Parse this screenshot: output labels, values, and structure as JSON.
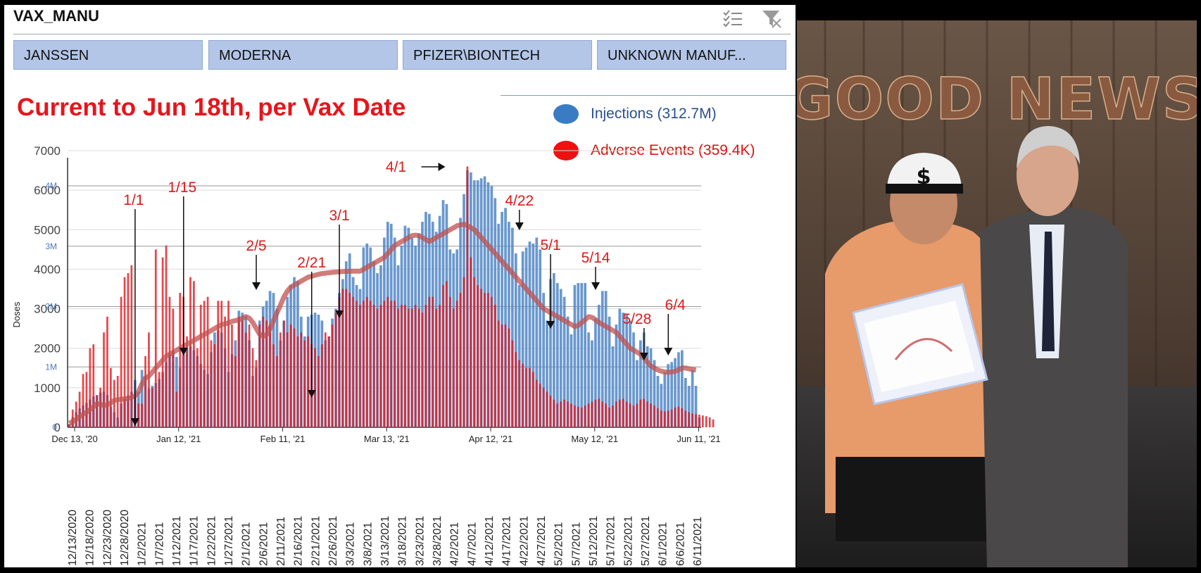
{
  "slicer": {
    "title": "VAX_MANU",
    "items": [
      "JANSSEN",
      "MODERNA",
      "PFIZER\\BIONTECH",
      "UNKNOWN MANUF..."
    ],
    "icons": [
      "multi-select-icon",
      "clear-filter-icon"
    ]
  },
  "chart_title": "Current to Jun 18th, per Vax Date",
  "legend": {
    "injections": "Injections (312.7M)",
    "adverse": "Adverse Events (359.4K)"
  },
  "colors": {
    "injections": "#4f86c6",
    "adverse": "#e0181e",
    "trend": "#c0504d",
    "title_red": "#e8141b",
    "annotation_red": "#dd1a1a"
  },
  "photo": {
    "sign_text": "GOOD NEWS"
  },
  "chart_data": {
    "type": "bar",
    "xlabel": "",
    "ylabel": "Doses",
    "ylim_left": [
      0,
      7000
    ],
    "ylim_right_label_max": "4M",
    "y_ticks_left": [
      "0",
      "1000",
      "2000",
      "3000",
      "4000",
      "5000",
      "6000",
      "7000"
    ],
    "y_ticks_right": [
      "0",
      "1M",
      "2M",
      "3M",
      "4M"
    ],
    "x_axis_top_labels": [
      "Dec 13, '20",
      "Jan 12, '21",
      "Feb 11, '21",
      "Mar 13, '21",
      "Apr 12, '21",
      "May 12, '21",
      "Jun 11, '21"
    ],
    "x_axis_bottom_labels": [
      "12/13/2020",
      "12/18/2020",
      "12/23/2020",
      "12/28/2020",
      "1/2/2021",
      "1/7/2021",
      "1/12/2021",
      "1/17/2021",
      "1/22/2021",
      "1/27/2021",
      "2/1/2021",
      "2/6/2021",
      "2/11/2021",
      "2/16/2021",
      "2/21/2021",
      "2/26/2021",
      "3/3/2021",
      "3/8/2021",
      "3/13/2021",
      "3/18/2021",
      "3/23/2021",
      "3/28/2021",
      "4/2/2021",
      "4/7/2021",
      "4/12/2021",
      "4/17/2021",
      "4/22/2021",
      "4/27/2021",
      "5/2/2021",
      "5/7/2021",
      "5/12/2021",
      "5/17/2021",
      "5/22/2021",
      "5/27/2021",
      "6/1/2021",
      "6/6/2021",
      "6/11/2021"
    ],
    "series": [
      {
        "name": "Injections (312.7M)",
        "unit": "doses",
        "x": "daily, 2020-12-13 to 2021-06-11",
        "values": [
          80,
          250,
          380,
          480,
          550,
          620,
          700,
          780,
          820,
          880,
          900,
          820,
          520,
          380,
          250,
          600,
          720,
          800,
          900,
          1200,
          900,
          1450,
          1300,
          980,
          1050,
          1120,
          1220,
          1400,
          1650,
          1850,
          1920,
          1780,
          1500,
          1850,
          2000,
          2050,
          1950,
          1800,
          1600,
          1450,
          1350,
          1900,
          2400,
          2450,
          2400,
          2000,
          1400,
          1850,
          2200,
          2950,
          2900,
          2820,
          2200,
          1300,
          1500,
          2700,
          3050,
          3200,
          3450,
          3400,
          3000,
          2200,
          2700,
          3300,
          3600,
          3800,
          3700,
          2800,
          2300,
          2800,
          2850,
          2900,
          2850,
          2700,
          2200,
          2300,
          2750,
          3000,
          3400,
          3750,
          4200,
          4400,
          3800,
          3600,
          3500,
          4550,
          4650,
          4550,
          4200,
          3900,
          4100,
          4800,
          5200,
          5150,
          4800,
          4100,
          4600,
          5100,
          5050,
          4800,
          4600,
          4900,
          5200,
          5450,
          5400,
          5200,
          4950,
          5350,
          5750,
          5650,
          4500,
          4400,
          4500,
          5300,
          5900,
          6500,
          6450,
          6250,
          6250,
          6300,
          6350,
          6200,
          6100,
          5800,
          5150,
          5450,
          5550,
          5200,
          5050,
          4400,
          3600,
          4450,
          4550,
          4700,
          4650,
          4800,
          4500,
          3400,
          2700,
          3750,
          3900,
          3650,
          3500,
          3300,
          2800,
          2350,
          3600,
          3650,
          3650,
          3650,
          2400,
          2200,
          2750,
          3100,
          3450,
          3450,
          2800,
          2050,
          2600,
          3000,
          2900,
          2850,
          2700,
          2400,
          1700,
          2200,
          2400,
          2050,
          2000,
          1700,
          1300,
          1100,
          1400,
          1600,
          1650,
          1750,
          1900,
          1950,
          1250,
          1050,
          1450,
          1050,
          250
        ]
      },
      {
        "name": "Adverse Events (359.4K)",
        "unit": "reports",
        "values": [
          80,
          450,
          650,
          900,
          1350,
          1400,
          2000,
          2100,
          800,
          1000,
          2400,
          2800,
          1500,
          1200,
          1300,
          3300,
          3800,
          3900,
          4100,
          800,
          600,
          600,
          1800,
          2400,
          1000,
          4500,
          1400,
          4300,
          4600,
          3300,
          3000,
          900,
          3400,
          3300,
          2300,
          3800,
          3700,
          2000,
          3100,
          3200,
          3300,
          2200,
          2100,
          3200,
          3200,
          2800,
          3200,
          2600,
          1800,
          2800,
          2700,
          2400,
          2600,
          2000,
          1700,
          2600,
          2800,
          2700,
          2600,
          2100,
          1800,
          2400,
          2700,
          2400,
          2600,
          2500,
          2300,
          2400,
          2200,
          2300,
          2100,
          2000,
          1800,
          2100,
          2400,
          2300,
          2600,
          2900,
          3300,
          3500,
          3500,
          3400,
          3300,
          3200,
          3100,
          3200,
          3300,
          3200,
          3100,
          3000,
          3100,
          3200,
          3300,
          3200,
          3200,
          3000,
          3100,
          3100,
          3000,
          3000,
          3100,
          3000,
          2900,
          3100,
          3300,
          3300,
          3000,
          3100,
          3600,
          3700,
          3300,
          3000,
          3200,
          3400,
          3800,
          6600,
          4300,
          3800,
          3600,
          3500,
          3400,
          3400,
          3300,
          3100,
          2700,
          2600,
          2600,
          2500,
          2200,
          1900,
          1700,
          1600,
          1500,
          1500,
          1400,
          1200,
          1100,
          1000,
          900,
          800,
          700,
          600,
          650,
          700,
          650,
          600,
          550,
          520,
          500,
          550,
          600,
          650,
          700,
          720,
          650,
          600,
          500,
          550,
          650,
          700,
          720,
          650,
          600,
          550,
          600,
          700,
          720,
          650,
          600,
          550,
          480,
          420,
          400,
          420,
          450,
          500,
          520,
          480,
          420,
          380,
          350,
          330,
          320,
          300,
          280,
          250,
          200
        ]
      },
      {
        "name": "Adverse Events trend",
        "values": [
          100,
          150,
          200,
          270,
          330,
          380,
          450,
          520,
          600,
          580,
          550,
          570,
          620,
          680,
          700,
          710,
          720,
          730,
          760,
          800,
          900,
          1100,
          1250,
          1300,
          1400,
          1500,
          1600,
          1700,
          1800,
          1850,
          1900,
          1950,
          2000,
          2050,
          2100,
          2150,
          2200,
          2250,
          2300,
          2350,
          2400,
          2450,
          2500,
          2550,
          2600,
          2620,
          2640,
          2680,
          2700,
          2720,
          2760,
          2800,
          2760,
          2650,
          2500,
          2350,
          2300,
          2350,
          2500,
          2700,
          2900,
          3100,
          3300,
          3450,
          3550,
          3600,
          3650,
          3700,
          3750,
          3800,
          3820,
          3850,
          3870,
          3890,
          3900,
          3910,
          3920,
          3930,
          3935,
          3940,
          3945,
          3950,
          3950,
          3950,
          3950,
          4000,
          4050,
          4100,
          4150,
          4200,
          4250,
          4300,
          4400,
          4500,
          4600,
          4650,
          4700,
          4750,
          4800,
          4850,
          4860,
          4850,
          4800,
          4750,
          4700,
          4750,
          4800,
          4850,
          4900,
          4950,
          5000,
          5050,
          5100,
          5120,
          5140,
          5100,
          5050,
          5000,
          4900,
          4800,
          4700,
          4600,
          4500,
          4400,
          4300,
          4200,
          4100,
          4000,
          3900,
          3800,
          3700,
          3600,
          3500,
          3400,
          3300,
          3200,
          3100,
          3000,
          2950,
          2900,
          2850,
          2800,
          2750,
          2700,
          2650,
          2600,
          2550,
          2580,
          2650,
          2720,
          2800,
          2780,
          2720,
          2650,
          2600,
          2550,
          2500,
          2450,
          2400,
          2300,
          2200,
          2100,
          2000,
          1950,
          1900,
          1850,
          1750,
          1650,
          1550,
          1500,
          1450,
          1420,
          1400,
          1390,
          1400,
          1420,
          1450,
          1500,
          1500,
          1480,
          1460,
          1450
        ]
      }
    ],
    "annotations": [
      {
        "label": "1/1",
        "points_to": "2021-01-01"
      },
      {
        "label": "1/15",
        "points_to": "2021-01-15"
      },
      {
        "label": "2/5",
        "points_to": "2021-02-05"
      },
      {
        "label": "2/21",
        "points_to": "2021-02-21"
      },
      {
        "label": "3/1",
        "points_to": "2021-03-01"
      },
      {
        "label": "4/1",
        "points_to": "2021-04-01"
      },
      {
        "label": "4/22",
        "points_to": "2021-04-22"
      },
      {
        "label": "5/1",
        "points_to": "2021-05-01"
      },
      {
        "label": "5/14",
        "points_to": "2021-05-14"
      },
      {
        "label": "5/28",
        "points_to": "2021-05-28"
      },
      {
        "label": "6/4",
        "points_to": "2021-06-04"
      }
    ]
  }
}
